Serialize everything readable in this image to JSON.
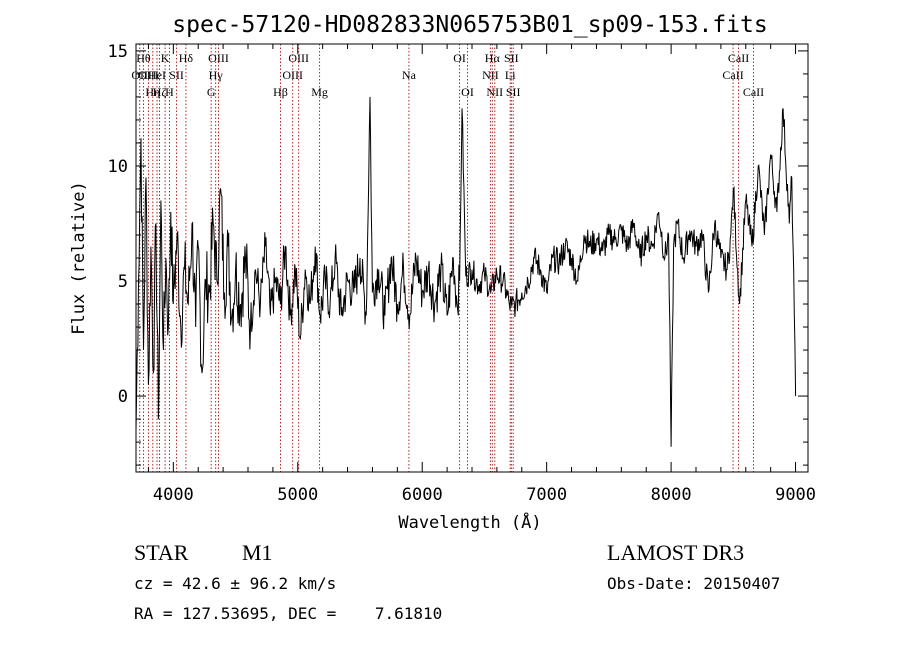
{
  "chart_data": {
    "type": "line",
    "title": "spec-57120-HD082833N065753B01_sp09-153.fits",
    "xlabel": "Wavelength (Å)",
    "ylabel": "Flux (relative)",
    "xlim": [
      3700,
      9100
    ],
    "ylim": [
      -3.3,
      15.3
    ],
    "x_ticks": [
      4000,
      5000,
      6000,
      7000,
      8000,
      9000
    ],
    "y_ticks": [
      0,
      5,
      10,
      15
    ],
    "line_color": "#000000",
    "marker_color": "#b22222",
    "series": [
      {
        "x": [
          3700,
          3720,
          3740,
          3760,
          3780,
          3800,
          3820,
          3840,
          3860,
          3880,
          3900,
          3920,
          3940,
          3960,
          3980,
          4000,
          4030,
          4060,
          4090,
          4120,
          4150,
          4180,
          4200,
          4230,
          4260,
          4290,
          4320,
          4350,
          4380,
          4410,
          4440,
          4470,
          4500,
          4540,
          4580,
          4620,
          4660,
          4700,
          4740,
          4780,
          4820,
          4860,
          4900,
          4940,
          4980,
          5020,
          5060,
          5100,
          5140,
          5180,
          5220,
          5260,
          5300,
          5350,
          5400,
          5450,
          5500,
          5550,
          5580,
          5600,
          5650,
          5700,
          5750,
          5800,
          5850,
          5900,
          5950,
          6000,
          6050,
          6100,
          6150,
          6200,
          6250,
          6280,
          6300,
          6320,
          6350,
          6400,
          6450,
          6500,
          6550,
          6600,
          6650,
          6700,
          6720,
          6750,
          6800,
          6850,
          6900,
          6950,
          7000,
          7050,
          7100,
          7150,
          7200,
          7250,
          7300,
          7350,
          7400,
          7450,
          7500,
          7550,
          7600,
          7650,
          7700,
          7750,
          7800,
          7850,
          7900,
          7950,
          7980,
          8000,
          8020,
          8050,
          8100,
          8150,
          8200,
          8250,
          8300,
          8350,
          8400,
          8450,
          8480,
          8500,
          8550,
          8600,
          8650,
          8700,
          8750,
          8800,
          8850,
          8900,
          8950,
          8970,
          8990,
          9000
        ],
        "y": [
          -1.5,
          5.0,
          11.2,
          2.0,
          9.5,
          0.5,
          6.5,
          1.0,
          7.5,
          -1.0,
          8.5,
          2.0,
          6.0,
          3.0,
          8.0,
          4.0,
          7.0,
          3.0,
          5.5,
          4.0,
          7.5,
          3.0,
          6.5,
          1.0,
          5.0,
          4.5,
          7.5,
          5.0,
          9.0,
          4.5,
          6.5,
          3.5,
          5.5,
          4.0,
          6.0,
          3.0,
          5.5,
          4.0,
          6.5,
          3.5,
          5.0,
          4.0,
          6.5,
          3.5,
          5.5,
          2.5,
          5.5,
          4.0,
          6.5,
          3.5,
          5.0,
          4.0,
          6.0,
          3.5,
          5.0,
          4.5,
          6.0,
          3.5,
          13.0,
          4.5,
          5.5,
          3.5,
          6.0,
          4.0,
          5.5,
          3.5,
          6.0,
          4.5,
          5.5,
          4.0,
          5.5,
          3.5,
          6.0,
          4.0,
          5.0,
          12.5,
          5.2,
          5.5,
          4.8,
          5.3,
          4.5,
          5.3,
          5.0,
          4.0,
          3.9,
          4.0,
          4.5,
          5.0,
          6.0,
          5.5,
          4.5,
          6.0,
          5.8,
          6.5,
          6.0,
          5.0,
          7.0,
          6.5,
          6.8,
          6.3,
          7.0,
          6.8,
          7.2,
          6.5,
          7.5,
          6.0,
          7.0,
          6.5,
          8.0,
          6.0,
          7.0,
          -2.2,
          6.5,
          7.5,
          6.0,
          7.2,
          6.5,
          7.0,
          4.5,
          7.5,
          6.0,
          5.5,
          7.0,
          9.0,
          4.0,
          8.5,
          6.5,
          10.0,
          7.0,
          10.5,
          8.0,
          12.5,
          7.5,
          9.5,
          3.5,
          0.0
        ]
      }
    ],
    "line_markers": [
      {
        "x": 3730,
        "label": "OII",
        "row": 2
      },
      {
        "x": 3760,
        "label": "Hθ",
        "row": 1
      },
      {
        "x": 3800,
        "label": "OIII",
        "row": 2
      },
      {
        "x": 3835,
        "label": "Hη",
        "row": 3
      },
      {
        "x": 3869,
        "label": "HeI",
        "row": 2
      },
      {
        "x": 3889,
        "label": "Hζ",
        "row": 3
      },
      {
        "x": 3934,
        "label": "K",
        "row": 1
      },
      {
        "x": 3969,
        "label": "H",
        "row": 3
      },
      {
        "x": 4026,
        "label": "SII",
        "row": 2
      },
      {
        "x": 4101,
        "label": "Hδ",
        "row": 1
      },
      {
        "x": 4304,
        "label": "G",
        "row": 3
      },
      {
        "x": 4340,
        "label": "Hγ",
        "row": 2
      },
      {
        "x": 4363,
        "label": "OIII",
        "row": 1
      },
      {
        "x": 4861,
        "label": "Hβ",
        "row": 3
      },
      {
        "x": 4959,
        "label": "OIII",
        "row": 2
      },
      {
        "x": 5007,
        "label": "OIII",
        "row": 1
      },
      {
        "x": 5175,
        "label": "Mg",
        "row": 3
      },
      {
        "x": 5893,
        "label": "Na",
        "row": 2
      },
      {
        "x": 6300,
        "label": "OI",
        "row": 1
      },
      {
        "x": 6364,
        "label": "OI",
        "row": 3
      },
      {
        "x": 6548,
        "label": "NII",
        "row": 2
      },
      {
        "x": 6563,
        "label": "Hα",
        "row": 1
      },
      {
        "x": 6583,
        "label": "NII",
        "row": 3
      },
      {
        "x": 6707,
        "label": "Li",
        "row": 2
      },
      {
        "x": 6716,
        "label": "SII",
        "row": 1
      },
      {
        "x": 6731,
        "label": "SII",
        "row": 3
      },
      {
        "x": 8498,
        "label": "CaII",
        "row": 2
      },
      {
        "x": 8542,
        "label": "CaII",
        "row": 1
      },
      {
        "x": 8662,
        "label": "CaII",
        "row": 3
      }
    ]
  },
  "info": {
    "object_type": "STAR",
    "subclass": "M1",
    "survey": "LAMOST DR3",
    "cz": "cz = 42.6 ± 96.2 km/s",
    "obs_date": "Obs-Date: 20150407",
    "coords": "RA = 127.53695, DEC =    7.61810"
  }
}
